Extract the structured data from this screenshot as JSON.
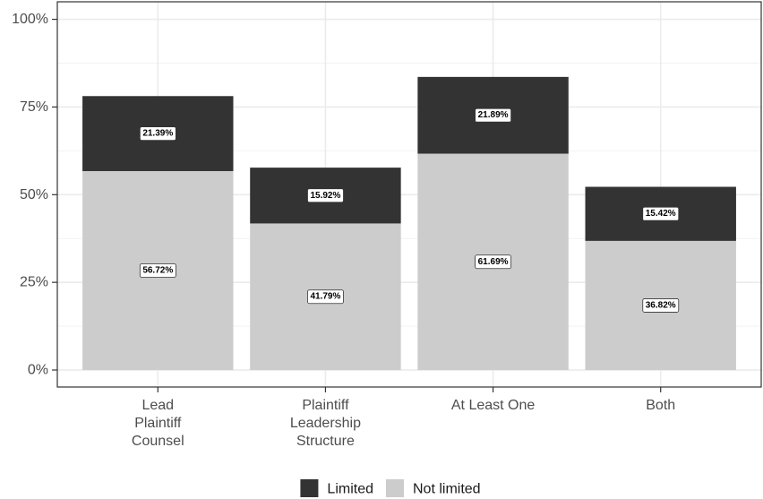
{
  "chart_data": {
    "type": "bar",
    "stacked": true,
    "title": "",
    "xlabel": "",
    "ylabel": "",
    "ylim": [
      0,
      100
    ],
    "yticks": [
      "0%",
      "25%",
      "50%",
      "75%",
      "100%"
    ],
    "ytick_values": [
      0,
      25,
      50,
      75,
      100
    ],
    "categories": [
      [
        "Lead",
        "Plaintiff",
        "Counsel"
      ],
      [
        "Plaintiff",
        "Leadership",
        "Structure"
      ],
      [
        "At Least One"
      ],
      [
        "Both"
      ]
    ],
    "series": [
      {
        "name": "Not limited",
        "color": "#cccccc",
        "values": [
          56.72,
          41.79,
          61.69,
          36.82
        ],
        "labels": [
          "56.72%",
          "41.79%",
          "61.69%",
          "36.82%"
        ]
      },
      {
        "name": "Limited",
        "color": "#333333",
        "values": [
          21.39,
          15.92,
          21.89,
          15.42
        ],
        "labels": [
          "21.39%",
          "15.92%",
          "21.89%",
          "15.42%"
        ]
      }
    ],
    "grid": true,
    "legend": {
      "position": "bottom",
      "order": [
        "Limited",
        "Not limited"
      ]
    }
  }
}
